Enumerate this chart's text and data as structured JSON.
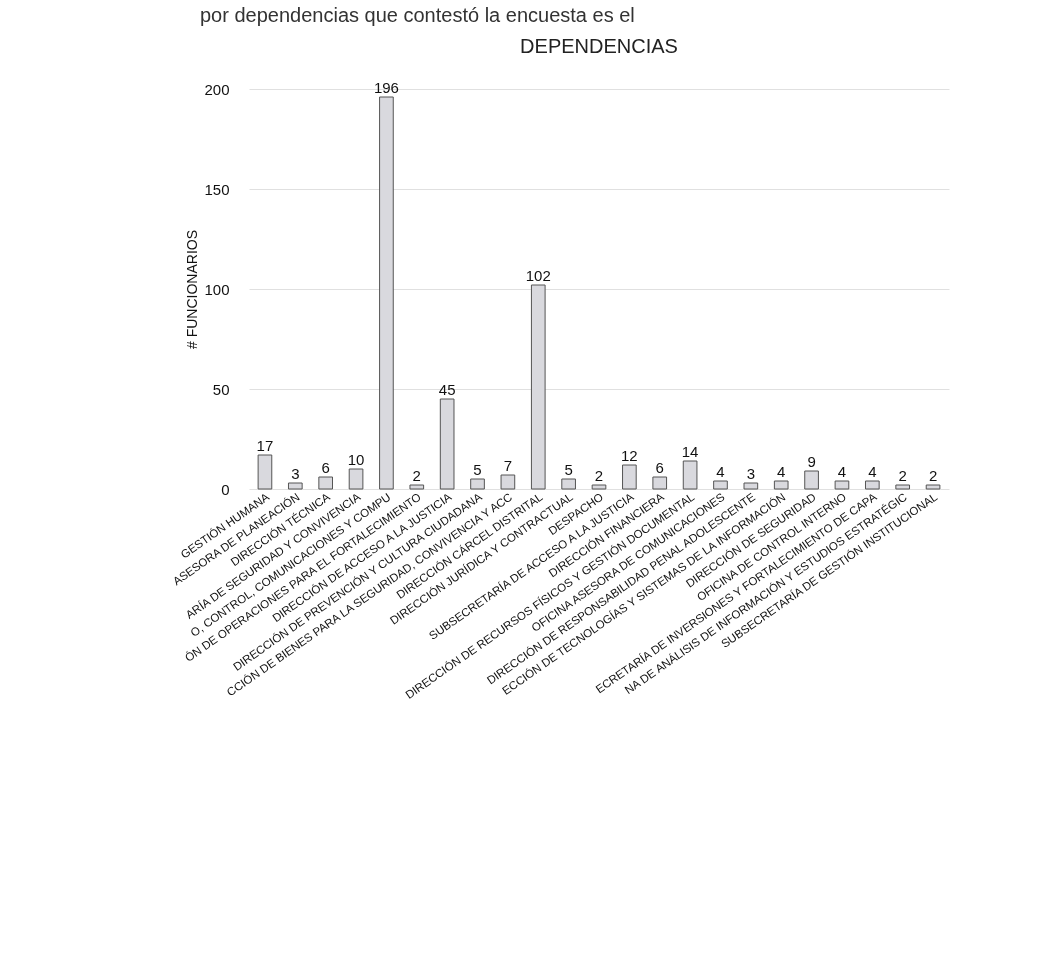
{
  "chart_data": {
    "type": "bar",
    "title": "DEPENDENCIAS",
    "ylabel": "# FUNCIONARIOS",
    "annotations": [
      "por dependencias que contestó la encuesta es el"
    ],
    "categories": [
      "GESTIÓN HUMANA",
      "ASESORA DE PLANEACIÓN",
      "DIRECCIÓN TÉCNICA",
      "ARÍA DE SEGURIDAD Y CONVIVENCIA",
      "O, CONTROL, COMUNICACIONES Y COMPU",
      "ÓN DE OPERACIONES PARA EL FORTALECIMIENTO",
      "DIRECCIÓN DE ACCESO A LA JUSTICIA",
      "DIRECCIÓN DE PREVENCIÓN Y CULTURA CIUDADANA",
      "CCIÓN DE BIENES PARA LA SEGURIDAD, CONVIVENCIA Y ACC",
      "DIRECCIÓN CÁRCEL DISTRITAL",
      "DIRECCIÓN JURÍDICA Y CONTRACTUAL",
      "DESPACHO",
      "SUBSECRETARÍA DE ACCESO A LA JUSTICIA",
      "DIRECCIÓN FINANCIERA",
      "DIRECCIÓN DE RECURSOS FÍSICOS Y GESTIÓN DOCUMENTAL",
      "OFICINA ASESORA DE COMUNICACIONES",
      "DIRECCIÓN DE RESPONSABILIDAD PENAL ADOLESCENTE",
      "ECCIÓN DE TECNOLOGÍAS Y SISTEMAS DE LA INFORMACIÓN",
      "DIRECCIÓN DE SEGURIDAD",
      "OFICINA DE CONTROL INTERNO",
      "ECRETARÍA DE INVERSIONES Y FORTALECIMIENTO DE CAPA",
      "NA DE ANÁLISIS DE INFORMACIÓN Y ESTUDIOS ESTRATÉGIC",
      "SUBSECRETARÍA DE GESTIÓN INSTITUCIONAL"
    ],
    "values": [
      17,
      3,
      6,
      10,
      196,
      2,
      45,
      5,
      7,
      102,
      5,
      2,
      12,
      6,
      14,
      4,
      3,
      4,
      9,
      4,
      4,
      2,
      2
    ],
    "color": "#d9d9de",
    "ylim": [
      0,
      200
    ],
    "yticks": [
      0,
      50,
      100,
      150,
      200
    ],
    "grid": "y",
    "data_labels": true
  }
}
